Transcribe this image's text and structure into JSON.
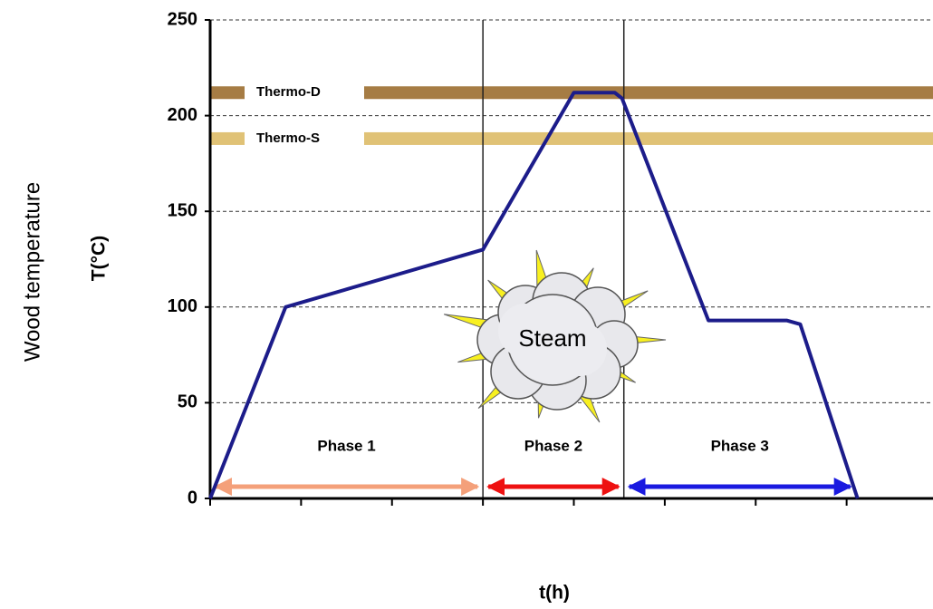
{
  "chart_data": {
    "type": "line",
    "y_label_outer": "Wood temperature",
    "y_label": "T(°C)",
    "x_label": "t(h)",
    "x": [
      0,
      0.83,
      3.0,
      4.0,
      4.45,
      4.53,
      5.48,
      6.34,
      6.49,
      7.12
    ],
    "series": [
      {
        "name": "Wood temperature",
        "color": "#1c1c8a",
        "values": [
          0,
          100,
          130,
          212,
          212,
          209,
          93,
          93,
          91,
          0
        ]
      }
    ],
    "xlim": [
      0,
      7.95
    ],
    "xticks": [
      0,
      1,
      2,
      3,
      4,
      5,
      6,
      7
    ],
    "ylim": [
      0,
      250
    ],
    "yticks": [
      0,
      50,
      100,
      150,
      200,
      250
    ],
    "grid": true,
    "bands": [
      {
        "label": "Thermo-D",
        "value": 212,
        "color": "#a67c44"
      },
      {
        "label": "Thermo-S",
        "value": 188,
        "color": "#e0c276"
      }
    ],
    "phases": [
      {
        "label": "Phase 1",
        "start": 0,
        "end": 3.0,
        "color": "#f4a07a"
      },
      {
        "label": "Phase 2",
        "start": 3.0,
        "end": 4.55,
        "color": "#ee1111"
      },
      {
        "label": "Phase 3",
        "start": 4.55,
        "end": 7.1,
        "color": "#1a1ae0"
      }
    ],
    "annotation": "Steam"
  }
}
